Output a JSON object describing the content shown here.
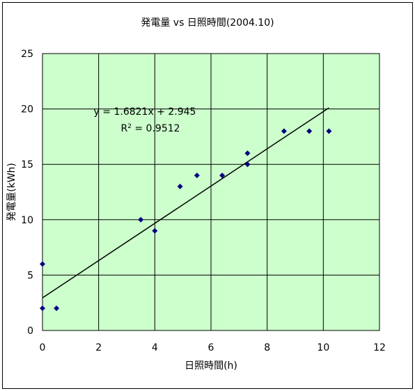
{
  "chart_data": {
    "type": "scatter",
    "title": "発電量 vs 日照時間(2004.10)",
    "xlabel": "日照時間(h)",
    "ylabel": "発電量(kWh)",
    "xlim": [
      0,
      12
    ],
    "ylim": [
      0,
      25
    ],
    "xticks": [
      "0",
      "2",
      "4",
      "6",
      "8",
      "10",
      "12"
    ],
    "yticks": [
      "0",
      "5",
      "10",
      "15",
      "20",
      "25"
    ],
    "grid": true,
    "plot_background": "#ccffcc",
    "marker_color": "#000080",
    "trendline_color": "#000000",
    "points": [
      {
        "x": 0,
        "y": 6
      },
      {
        "x": 0,
        "y": 2
      },
      {
        "x": 0.5,
        "y": 2
      },
      {
        "x": 3.5,
        "y": 10
      },
      {
        "x": 4.0,
        "y": 9
      },
      {
        "x": 4.9,
        "y": 13
      },
      {
        "x": 5.5,
        "y": 14
      },
      {
        "x": 6.4,
        "y": 14
      },
      {
        "x": 7.3,
        "y": 16
      },
      {
        "x": 7.3,
        "y": 15
      },
      {
        "x": 8.6,
        "y": 18
      },
      {
        "x": 9.5,
        "y": 18
      },
      {
        "x": 10.2,
        "y": 18
      }
    ],
    "trendline": {
      "slope": 1.6821,
      "intercept": 2.945,
      "x_range": [
        0,
        10.2
      ],
      "equation": "y = 1.6821x + 2.945",
      "r2_prefix": "R",
      "r2_sup": "2",
      "r2_suffix": " = 0.9512"
    }
  }
}
